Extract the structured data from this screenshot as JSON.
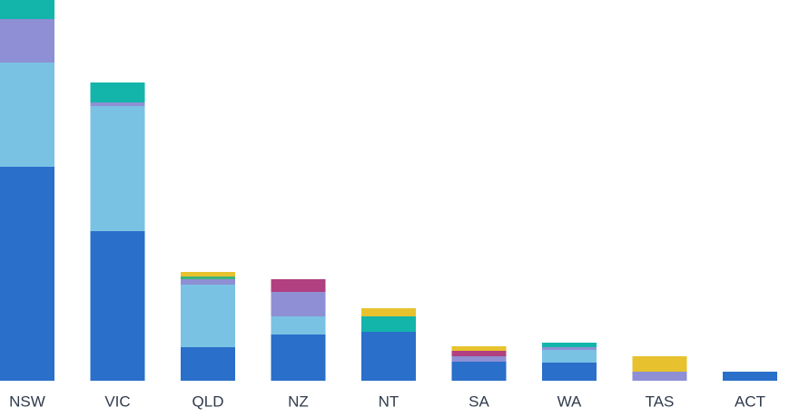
{
  "chart_data": {
    "type": "stacked_bar",
    "categories": [
      "NSW",
      "VIC",
      "QLD",
      "NZ",
      "NT",
      "SA",
      "WA",
      "TAS",
      "ACT"
    ],
    "ylim": [
      0,
      420
    ],
    "series": [
      {
        "color": "#2a6fc9",
        "values": [
          236,
          165,
          37,
          51,
          54,
          21,
          20,
          null,
          10
        ]
      },
      {
        "color": "#79c2e4",
        "values": [
          115,
          138,
          69,
          20,
          null,
          null,
          14,
          null,
          null
        ]
      },
      {
        "color": "#8e8fd4",
        "values": [
          48,
          4,
          6,
          27,
          null,
          6,
          3,
          10,
          null
        ]
      },
      {
        "color": "#3bb37a",
        "values": [
          null,
          null,
          3,
          null,
          null,
          null,
          null,
          null,
          null
        ]
      },
      {
        "color": "#13b5aa",
        "values": [
          21,
          22,
          null,
          null,
          17,
          null,
          5,
          null,
          null
        ]
      },
      {
        "color": "#b0407f",
        "values": [
          null,
          null,
          null,
          14,
          null,
          6,
          null,
          null,
          null
        ]
      },
      {
        "color": "#e7c22e",
        "values": [
          null,
          null,
          5,
          null,
          9,
          5,
          null,
          17,
          null
        ]
      }
    ]
  }
}
